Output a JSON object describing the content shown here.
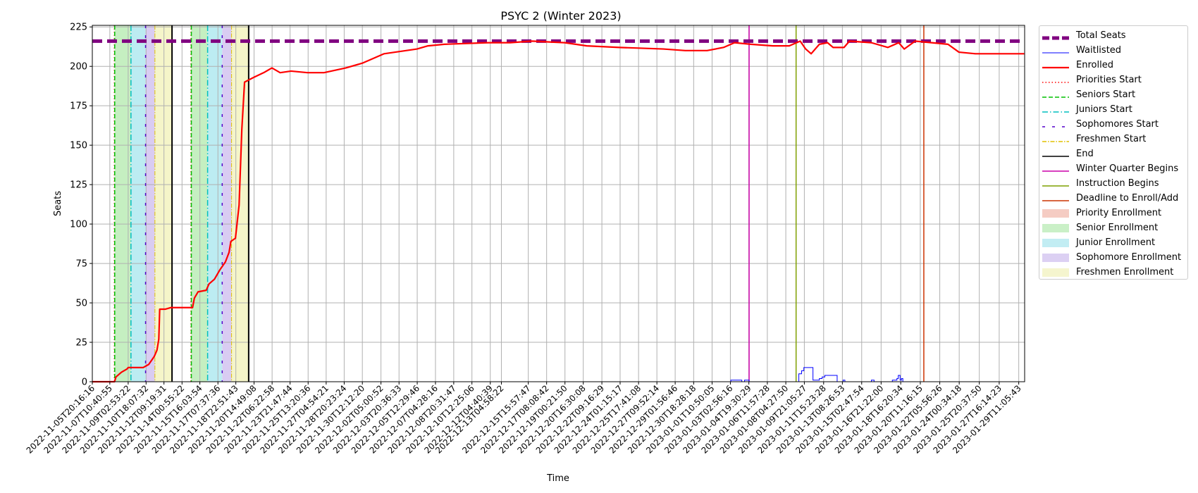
{
  "chart_data": {
    "type": "line",
    "title": "PSYC 2 (Winter 2023)",
    "xlabel": "Time",
    "ylabel": "Seats",
    "xlim": [
      "2022-11-05T20:16:16",
      "2023-01-30T00:00:00"
    ],
    "ylim": [
      0,
      226
    ],
    "y_ticks": [
      0,
      25,
      50,
      75,
      100,
      125,
      150,
      175,
      200,
      225
    ],
    "x_tick_labels": [
      "2022-11-05T20:16:16",
      "2022-11-07T10:40:55",
      "2022-11-09T02:53:22",
      "2022-11-10T18:07:32",
      "2022-11-12T09:19:31",
      "2022-11-14T00:55:22",
      "2022-11-15T16:03:54",
      "2022-11-17T07:37:36",
      "2022-11-18T22:51:43",
      "2022-11-20T14:49:08",
      "2022-11-22T06:22:58",
      "2022-11-23T21:47:44",
      "2022-11-25T13:20:36",
      "2022-11-27T04:54:21",
      "2022-11-28T20:23:24",
      "2022-11-30T12:12:20",
      "2022-12-02T05:00:52",
      "2022-12-03T20:36:33",
      "2022-12-05T12:29:46",
      "2022-12-07T04:28:16",
      "2022-12-08T20:31:47",
      "2022-12-10T12:25:06",
      "2022-12-12T04:40:39",
      "2022-12-13T04:58:22",
      "2022-12-15T15:57:47",
      "2022-12-17T08:08:42",
      "2022-12-19T00:21:50",
      "2022-12-20T16:30:08",
      "2022-12-22T09:16:29",
      "2022-12-24T01:15:17",
      "2022-12-25T17:41:08",
      "2022-12-27T09:52:14",
      "2022-12-29T01:56:46",
      "2022-12-30T18:28:18",
      "2023-01-01T10:50:05",
      "2023-01-03T02:56:16",
      "2023-01-04T19:30:29",
      "2023-01-06T11:57:28",
      "2023-01-08T04:27:50",
      "2023-01-09T21:05:27",
      "2023-01-11T15:23:28",
      "2023-01-13T08:26:53",
      "2023-01-15T02:47:54",
      "2023-01-16T21:22:00",
      "2023-01-18T16:20:34",
      "2023-01-20T11:16:15",
      "2023-01-22T05:56:26",
      "2023-01-24T00:34:18",
      "2023-01-25T20:37:50",
      "2023-01-27T16:14:23",
      "2023-01-29T11:05:43"
    ],
    "grid": true,
    "legend_position": "outside right",
    "series": [
      {
        "name": "Total Seats",
        "color": "#800080",
        "style": "dashed-thick",
        "value": 216
      },
      {
        "name": "Waitlisted",
        "color": "#0000ff",
        "style": "solid-thin",
        "points": [
          [
            "2022-11-05T20:16:16",
            0
          ],
          [
            "2023-01-03T01:00:00",
            0
          ],
          [
            "2023-01-03T04:00:00",
            1
          ],
          [
            "2023-01-04T02:00:00",
            1
          ],
          [
            "2023-01-04T04:00:00",
            0
          ],
          [
            "2023-01-04T10:00:00",
            1
          ],
          [
            "2023-01-04T20:00:00",
            0
          ],
          [
            "2023-01-09T03:00:00",
            0
          ],
          [
            "2023-01-09T09:00:00",
            5
          ],
          [
            "2023-01-09T15:00:00",
            7
          ],
          [
            "2023-01-09T20:00:00",
            9
          ],
          [
            "2023-01-10T15:00:00",
            9
          ],
          [
            "2023-01-10T16:00:00",
            1
          ],
          [
            "2023-01-11T03:00:00",
            1
          ],
          [
            "2023-01-11T06:00:00",
            2
          ],
          [
            "2023-01-11T12:00:00",
            3
          ],
          [
            "2023-01-11T18:00:00",
            4
          ],
          [
            "2023-01-12T20:00:00",
            4
          ],
          [
            "2023-01-12T21:00:00",
            0
          ],
          [
            "2023-01-13T10:00:00",
            1
          ],
          [
            "2023-01-13T14:00:00",
            0
          ],
          [
            "2023-01-15T20:00:00",
            0
          ],
          [
            "2023-01-16T00:00:00",
            1
          ],
          [
            "2023-01-16T06:00:00",
            0
          ],
          [
            "2023-01-17T20:00:00",
            0
          ],
          [
            "2023-01-17T22:00:00",
            1
          ],
          [
            "2023-01-18T08:00:00",
            2
          ],
          [
            "2023-01-18T11:00:00",
            4
          ],
          [
            "2023-01-18T15:00:00",
            1
          ],
          [
            "2023-01-18T18:00:00",
            2
          ],
          [
            "2023-01-18T21:00:00",
            0
          ],
          [
            "2023-01-29T23:00:00",
            0
          ]
        ]
      },
      {
        "name": "Enrolled",
        "color": "#ff0000",
        "style": "solid-thick",
        "points": [
          [
            "2022-11-05T20:16:16",
            0
          ],
          [
            "2022-11-07T21:00:00",
            0
          ],
          [
            "2022-11-08T00:00:00",
            3
          ],
          [
            "2022-11-08T12:00:00",
            6
          ],
          [
            "2022-11-09T00:00:00",
            8
          ],
          [
            "2022-11-09T03:00:00",
            9
          ],
          [
            "2022-11-10T12:00:00",
            9
          ],
          [
            "2022-11-11T00:00:00",
            11
          ],
          [
            "2022-11-11T12:00:00",
            16
          ],
          [
            "2022-11-11T18:00:00",
            20
          ],
          [
            "2022-11-11T22:00:00",
            27
          ],
          [
            "2022-11-12T00:00:00",
            46
          ],
          [
            "2022-11-12T12:00:00",
            46
          ],
          [
            "2022-11-13T00:00:00",
            47
          ],
          [
            "2022-11-15T00:00:00",
            47
          ],
          [
            "2022-11-15T04:00:00",
            53
          ],
          [
            "2022-11-15T12:00:00",
            57
          ],
          [
            "2022-11-16T06:00:00",
            58
          ],
          [
            "2022-11-16T12:00:00",
            62
          ],
          [
            "2022-11-17T00:00:00",
            65
          ],
          [
            "2022-11-17T12:00:00",
            71
          ],
          [
            "2022-11-18T00:00:00",
            76
          ],
          [
            "2022-11-18T08:00:00",
            82
          ],
          [
            "2022-11-18T12:00:00",
            89
          ],
          [
            "2022-11-18T22:00:00",
            91
          ],
          [
            "2022-11-19T06:00:00",
            112
          ],
          [
            "2022-11-19T12:00:00",
            160
          ],
          [
            "2022-11-19T18:00:00",
            190
          ],
          [
            "2022-11-20T14:00:00",
            193
          ],
          [
            "2022-11-21T12:00:00",
            196
          ],
          [
            "2022-11-22T06:00:00",
            199
          ],
          [
            "2022-11-23T00:00:00",
            196
          ],
          [
            "2022-11-24T00:00:00",
            197
          ],
          [
            "2022-11-25T12:00:00",
            196
          ],
          [
            "2022-11-27T00:00:00",
            196
          ],
          [
            "2022-11-29T00:00:00",
            199
          ],
          [
            "2022-11-30T12:00:00",
            202
          ],
          [
            "2022-12-01T12:00:00",
            205
          ],
          [
            "2022-12-02T12:00:00",
            208
          ],
          [
            "2022-12-03T12:00:00",
            209
          ],
          [
            "2022-12-05T12:00:00",
            211
          ],
          [
            "2022-12-06T12:00:00",
            213
          ],
          [
            "2022-12-08T00:00:00",
            214
          ],
          [
            "2022-12-12T00:00:00",
            215
          ],
          [
            "2022-12-14T00:00:00",
            215
          ],
          [
            "2022-12-16T00:00:00",
            216
          ],
          [
            "2022-12-19T00:00:00",
            215
          ],
          [
            "2022-12-21T00:00:00",
            213
          ],
          [
            "2022-12-24T00:00:00",
            212
          ],
          [
            "2022-12-28T00:00:00",
            211
          ],
          [
            "2022-12-30T00:00:00",
            210
          ],
          [
            "2023-01-01T00:00:00",
            210
          ],
          [
            "2023-01-02T12:00:00",
            212
          ],
          [
            "2023-01-03T12:00:00",
            215
          ],
          [
            "2023-01-05T00:00:00",
            214
          ],
          [
            "2023-01-07T00:00:00",
            213
          ],
          [
            "2023-01-08T12:00:00",
            213
          ],
          [
            "2023-01-09T12:00:00",
            216
          ],
          [
            "2023-01-10T00:00:00",
            211
          ],
          [
            "2023-01-10T12:00:00",
            208
          ],
          [
            "2023-01-11T06:00:00",
            214
          ],
          [
            "2023-01-12T00:00:00",
            215
          ],
          [
            "2023-01-12T12:00:00",
            212
          ],
          [
            "2023-01-13T12:00:00",
            212
          ],
          [
            "2023-01-14T00:00:00",
            216
          ],
          [
            "2023-01-16T00:00:00",
            215
          ],
          [
            "2023-01-17T12:00:00",
            212
          ],
          [
            "2023-01-18T12:00:00",
            215
          ],
          [
            "2023-01-19T00:00:00",
            211
          ],
          [
            "2023-01-20T00:00:00",
            216
          ],
          [
            "2023-01-21T12:00:00",
            215
          ],
          [
            "2023-01-23T00:00:00",
            214
          ],
          [
            "2023-01-24T00:00:00",
            209
          ],
          [
            "2023-01-25T12:00:00",
            208
          ],
          [
            "2023-01-27T00:00:00",
            208
          ],
          [
            "2023-01-29T23:00:00",
            208
          ]
        ]
      },
      {
        "name": "Priorities Start",
        "color": "#ff0000",
        "style": "dotted"
      },
      {
        "name": "Seniors Start",
        "color": "#00c000",
        "style": "dashed"
      },
      {
        "name": "Juniors Start",
        "color": "#00bfbf",
        "style": "dashdot"
      },
      {
        "name": "Sophomores Start",
        "color": "#5500cc",
        "style": "loose-dashed"
      },
      {
        "name": "Freshmen Start",
        "color": "#e0c000",
        "style": "dashdot-thin"
      },
      {
        "name": "End",
        "color": "#000000",
        "style": "solid"
      },
      {
        "name": "Winter Quarter Begins",
        "color": "#cc00aa",
        "style": "solid"
      },
      {
        "name": "Instruction Begins",
        "color": "#7fa000",
        "style": "solid"
      },
      {
        "name": "Deadline to Enroll/Add",
        "color": "#cc3300",
        "style": "solid"
      },
      {
        "name": "Priority Enrollment",
        "color": "#f4c7bd",
        "style": "band"
      },
      {
        "name": "Senior Enrollment",
        "color": "#c5efc1",
        "style": "band"
      },
      {
        "name": "Junior Enrollment",
        "color": "#bcecf2",
        "style": "band"
      },
      {
        "name": "Sophomore Enrollment",
        "color": "#d9ccf2",
        "style": "band"
      },
      {
        "name": "Freshmen Enrollment",
        "color": "#f5f5c9",
        "style": "band"
      }
    ],
    "enrollment_periods": [
      {
        "priority": "2022-11-07T20:40:00",
        "seniors": "2022-11-07T21:20:00",
        "juniors": "2022-11-09T09:00:00",
        "sophomores": "2022-11-10T17:00:00",
        "freshmen": "2022-11-11T13:30:00",
        "end": "2022-11-13T03:00:00"
      },
      {
        "priority": "2022-11-14T20:40:00",
        "seniors": "2022-11-14T21:20:00",
        "juniors": "2022-11-16T09:00:00",
        "sophomores": "2022-11-17T17:00:00",
        "freshmen": "2022-11-18T13:30:00",
        "end": "2022-11-20T03:00:00"
      }
    ],
    "events": {
      "winter_quarter_begins": "2023-01-04T20:00:00",
      "instruction_begins": "2023-01-09T03:00:00",
      "deadline_to_enroll_add": "2023-01-20T19:00:00"
    }
  }
}
